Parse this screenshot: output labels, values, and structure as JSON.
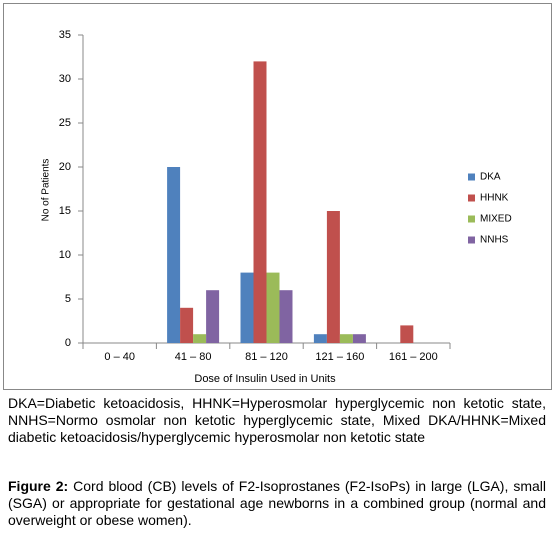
{
  "chart_data": {
    "type": "bar",
    "categories": [
      "0 – 40",
      "41 – 80",
      "81 – 120",
      "121 – 160",
      "161 – 200"
    ],
    "series": [
      {
        "name": "DKA",
        "color": "#4f81bd",
        "values": [
          0,
          20,
          8,
          1,
          0
        ]
      },
      {
        "name": "HHNK",
        "color": "#c0504d",
        "values": [
          0,
          4,
          32,
          15,
          2
        ]
      },
      {
        "name": "MIXED",
        "color": "#9bbb59",
        "values": [
          0,
          1,
          8,
          1,
          0
        ]
      },
      {
        "name": "NNHS",
        "color": "#8064a2",
        "values": [
          0,
          6,
          6,
          1,
          0
        ]
      }
    ],
    "xlabel": "Dose of Insulin Used in Units",
    "ylabel": "No of Patients",
    "ylim": [
      0,
      35
    ],
    "yticks": [
      0,
      5,
      10,
      15,
      20,
      25,
      30,
      35
    ],
    "grid": false,
    "legend": "right"
  },
  "note": "DKA=Diabetic ketoacidosis, HHNK=Hyperosmolar hyperglycemic non ketotic state, NNHS=Normo osmolar non ketotic hyperglycemic state, Mixed DKA/HHNK=Mixed diabetic ketoacidosis/hyperglycemic hyperosmolar non ketotic state",
  "caption": {
    "label": "Figure 2:",
    "text": "Cord blood (CB) levels of F2-Isoprostanes (F2-IsoPs) in large (LGA), small (SGA) or appropriate for gestational age newborns in a combined group (normal and overweight or obese women)."
  }
}
